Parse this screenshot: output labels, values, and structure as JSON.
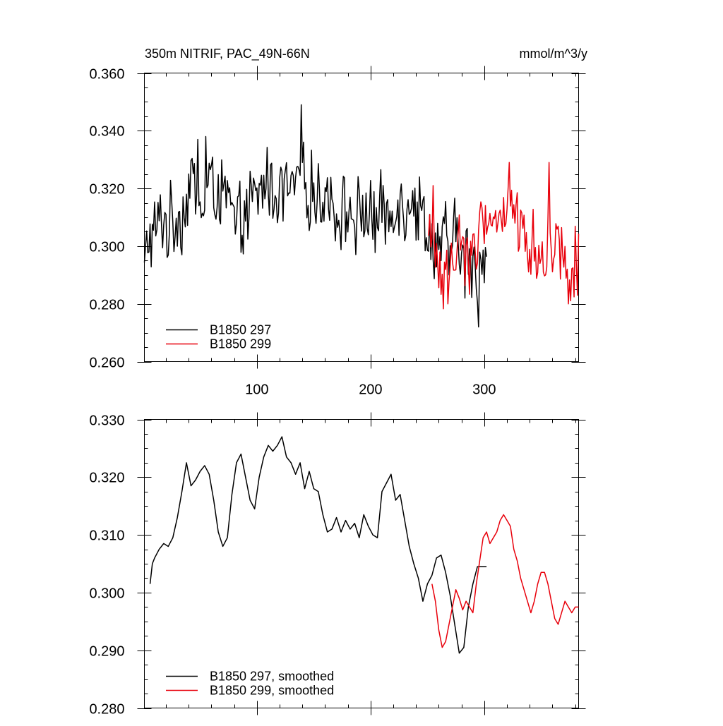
{
  "chart_data": [
    {
      "type": "line",
      "title": "350m NITRIF, PAC_49N-66N",
      "units": "mmol/m^3/y",
      "xlim": [
        1,
        383
      ],
      "ylim": [
        0.26,
        0.36
      ],
      "xticks": [
        100,
        200,
        300
      ],
      "xtick_labels": [
        "100",
        "200",
        "300"
      ],
      "yticks": [
        0.26,
        0.28,
        0.3,
        0.32,
        0.34,
        0.36
      ],
      "ytick_labels": [
        "0.260",
        "0.280",
        "0.300",
        "0.320",
        "0.340",
        "0.360"
      ],
      "legend_position": "bottom-left",
      "series": [
        {
          "name": "B1850 297",
          "color": "#000000",
          "x_start": 1,
          "x_step": 1,
          "anchors_x": [
            1,
            3,
            5,
            8,
            10,
            14,
            18,
            22,
            26,
            30,
            34,
            38,
            42,
            46,
            50,
            54,
            58,
            62,
            66,
            70,
            74,
            78,
            82,
            86,
            90,
            94,
            98,
            102,
            106,
            110,
            114,
            118,
            122,
            126,
            130,
            134,
            138,
            142,
            146,
            150,
            154,
            158,
            162,
            166,
            170,
            174,
            178,
            182,
            186,
            190,
            194,
            198,
            202,
            206,
            210,
            214,
            218,
            222,
            226,
            230,
            234,
            238,
            242,
            246,
            250,
            254,
            258,
            262,
            266,
            270,
            274,
            278,
            282,
            286,
            290,
            294,
            298,
            302
          ],
          "anchors_y": [
            0.291,
            0.3,
            0.303,
            0.301,
            0.305,
            0.308,
            0.31,
            0.306,
            0.309,
            0.311,
            0.31,
            0.315,
            0.326,
            0.318,
            0.312,
            0.316,
            0.324,
            0.32,
            0.322,
            0.315,
            0.318,
            0.311,
            0.305,
            0.308,
            0.31,
            0.314,
            0.316,
            0.318,
            0.321,
            0.324,
            0.319,
            0.317,
            0.32,
            0.322,
            0.318,
            0.321,
            0.323,
            0.32,
            0.318,
            0.321,
            0.317,
            0.316,
            0.319,
            0.315,
            0.312,
            0.31,
            0.313,
            0.312,
            0.309,
            0.311,
            0.312,
            0.311,
            0.31,
            0.309,
            0.311,
            0.312,
            0.31,
            0.315,
            0.317,
            0.313,
            0.318,
            0.316,
            0.314,
            0.31,
            0.307,
            0.3,
            0.302,
            0.298,
            0.304,
            0.297,
            0.303,
            0.301,
            0.295,
            0.297,
            0.292,
            0.289,
            0.296,
            0.301
          ],
          "noise_amplitude": 0.016,
          "extremes": [
            [
              139,
              0.349
            ],
            [
              295,
              0.272
            ],
            [
              48,
              0.337
            ],
            [
              55,
              0.338
            ],
            [
              283,
              0.282
            ]
          ]
        },
        {
          "name": "B1850 299",
          "color": "#e8000b",
          "x_start": 251,
          "x_step": 1,
          "anchors_x": [
            251,
            255,
            259,
            263,
            267,
            271,
            275,
            279,
            283,
            287,
            291,
            295,
            299,
            303,
            307,
            311,
            315,
            319,
            323,
            327,
            331,
            335,
            339,
            343,
            347,
            351,
            355,
            359,
            363,
            367,
            371,
            375,
            379,
            383
          ],
          "anchors_y": [
            0.301,
            0.3,
            0.295,
            0.29,
            0.289,
            0.294,
            0.3,
            0.302,
            0.299,
            0.298,
            0.296,
            0.302,
            0.307,
            0.31,
            0.31,
            0.309,
            0.311,
            0.313,
            0.313,
            0.31,
            0.306,
            0.304,
            0.301,
            0.3,
            0.298,
            0.297,
            0.298,
            0.303,
            0.302,
            0.3,
            0.296,
            0.294,
            0.296,
            0.294
          ],
          "noise_amplitude": 0.016,
          "extremes": [
            [
              255,
              0.321
            ],
            [
              268,
              0.28
            ],
            [
              322,
              0.329
            ],
            [
              357,
              0.329
            ],
            [
              374,
              0.28
            ]
          ]
        }
      ]
    },
    {
      "type": "line",
      "xlim": [
        1,
        383
      ],
      "ylim": [
        0.28,
        0.33
      ],
      "xticks": [
        100,
        200,
        300
      ],
      "xtick_labels": [
        "",
        "",
        ""
      ],
      "yticks": [
        0.28,
        0.29,
        0.3,
        0.31,
        0.32,
        0.33
      ],
      "ytick_labels": [
        "0.280",
        "0.290",
        "0.300",
        "0.310",
        "0.320",
        "0.330"
      ],
      "legend_position": "bottom-left",
      "series": [
        {
          "name": "B1850 297, smoothed",
          "color": "#000000",
          "x": [
            6,
            8,
            10,
            14,
            18,
            22,
            26,
            30,
            34,
            38,
            42,
            46,
            50,
            54,
            58,
            62,
            66,
            70,
            74,
            78,
            82,
            86,
            90,
            94,
            98,
            102,
            106,
            110,
            114,
            118,
            122,
            126,
            130,
            134,
            138,
            142,
            146,
            150,
            154,
            158,
            162,
            166,
            170,
            174,
            178,
            182,
            186,
            190,
            194,
            198,
            202,
            206,
            210,
            214,
            218,
            222,
            226,
            230,
            234,
            238,
            242,
            246,
            250,
            254,
            258,
            262,
            266,
            270,
            274,
            278,
            282,
            286,
            290,
            294,
            298,
            302
          ],
          "y": [
            0.3015,
            0.305,
            0.306,
            0.3075,
            0.3085,
            0.308,
            0.3095,
            0.313,
            0.3175,
            0.3225,
            0.3185,
            0.3195,
            0.321,
            0.322,
            0.3205,
            0.316,
            0.3105,
            0.308,
            0.3095,
            0.317,
            0.3225,
            0.324,
            0.32,
            0.316,
            0.3145,
            0.32,
            0.3235,
            0.3255,
            0.3245,
            0.3255,
            0.327,
            0.3235,
            0.3225,
            0.3205,
            0.3225,
            0.318,
            0.321,
            0.318,
            0.3175,
            0.3135,
            0.3105,
            0.311,
            0.313,
            0.3105,
            0.3125,
            0.311,
            0.312,
            0.3095,
            0.3135,
            0.3115,
            0.31,
            0.3095,
            0.3175,
            0.319,
            0.3205,
            0.316,
            0.317,
            0.3125,
            0.308,
            0.305,
            0.3025,
            0.2985,
            0.3015,
            0.303,
            0.306,
            0.3065,
            0.3035,
            0.2995,
            0.2945,
            0.2895,
            0.2905,
            0.2975,
            0.3015,
            0.3045,
            0.3045,
            0.3045
          ]
        },
        {
          "name": "B1850 299, smoothed",
          "color": "#e8000b",
          "x": [
            254,
            257,
            260,
            263,
            266,
            269,
            272,
            275,
            278,
            281,
            284,
            287,
            290,
            293,
            296,
            299,
            302,
            305,
            308,
            311,
            314,
            317,
            320,
            323,
            326,
            329,
            332,
            335,
            338,
            341,
            344,
            347,
            350,
            353,
            356,
            359,
            362,
            365,
            368,
            371,
            374,
            377,
            380,
            383
          ],
          "y": [
            0.3015,
            0.2985,
            0.2935,
            0.2905,
            0.2915,
            0.2945,
            0.2975,
            0.3005,
            0.299,
            0.297,
            0.2985,
            0.2975,
            0.2965,
            0.3015,
            0.3055,
            0.3095,
            0.3105,
            0.3085,
            0.3095,
            0.3105,
            0.3125,
            0.3135,
            0.3125,
            0.3115,
            0.3075,
            0.3055,
            0.3025,
            0.3005,
            0.2985,
            0.2965,
            0.2985,
            0.3015,
            0.3035,
            0.3035,
            0.3015,
            0.2985,
            0.2955,
            0.2945,
            0.2965,
            0.2985,
            0.2975,
            0.2965,
            0.2975,
            0.2975
          ]
        }
      ]
    }
  ]
}
